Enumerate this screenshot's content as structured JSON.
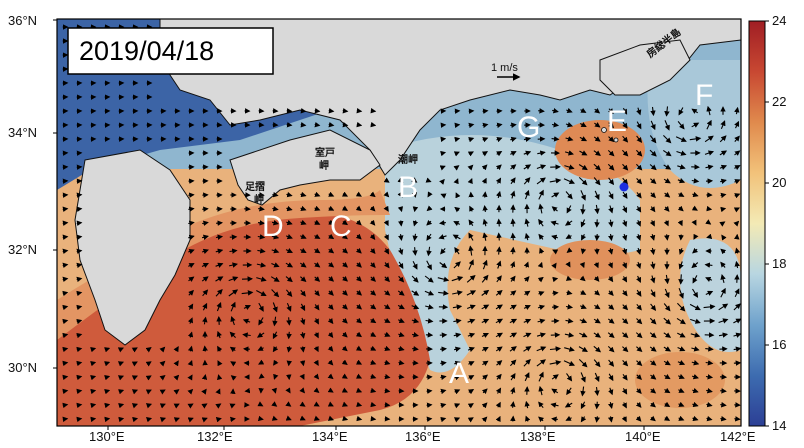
{
  "map": {
    "date": "2019/04/18",
    "lon_ticks": [
      "130°E",
      "132°E",
      "134°E",
      "136°E",
      "138°E",
      "140°E",
      "142°E"
    ],
    "lat_ticks": [
      "30°N",
      "32°N",
      "34°N",
      "36°N"
    ],
    "scale_label": "1 m/s",
    "colorbar": {
      "min": 14,
      "max": 24,
      "ticks": [
        "14",
        "16",
        "18",
        "20",
        "22",
        "24"
      ],
      "colors": [
        "#2c3f95",
        "#3d6cb0",
        "#6fa2cc",
        "#b8d6e1",
        "#f3eab5",
        "#f2c27a",
        "#e08a4d",
        "#c84832",
        "#a01e24"
      ]
    },
    "region_labels": [
      "A",
      "B",
      "C",
      "D",
      "E",
      "F",
      "G"
    ],
    "place_names": {
      "muroto": "室戸\n岬",
      "ashizuri": "足摺\n岬",
      "shiono": "潮岬",
      "boso": "房総半島"
    },
    "station_marker_color": "#1a2ee0"
  }
}
